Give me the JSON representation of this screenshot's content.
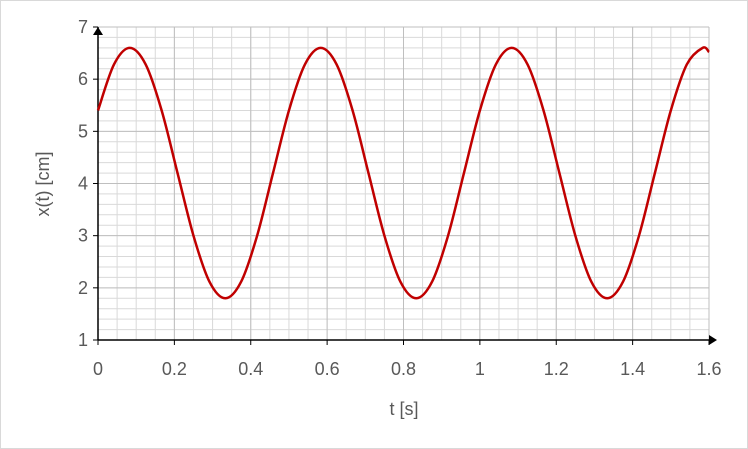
{
  "chart_data": {
    "type": "line",
    "title": "",
    "xlabel": "t [s]",
    "ylabel": "x(t) [cm]",
    "xlim": [
      0,
      1.6
    ],
    "ylim": [
      1,
      7
    ],
    "x_ticks": [
      0,
      0.2,
      0.4,
      0.6,
      0.8,
      1,
      1.2,
      1.4,
      1.6
    ],
    "y_ticks": [
      1,
      2,
      3,
      4,
      5,
      6,
      7
    ],
    "x_tick_labels": [
      "0",
      "0.2",
      "0.4",
      "0.6",
      "0.8",
      "1",
      "1.2",
      "1.4",
      "1.6"
    ],
    "y_tick_labels": [
      "1",
      "2",
      "3",
      "4",
      "5",
      "6",
      "7"
    ],
    "grid": true,
    "minor_grid_x_step": 0.05,
    "minor_grid_y_step": 0.2,
    "series": [
      {
        "color": "#c00000",
        "x": [
          0,
          0.0417,
          0.0833,
          0.125,
          0.1667,
          0.2083,
          0.25,
          0.2917,
          0.3333,
          0.375,
          0.4167,
          0.4583,
          0.5,
          0.5417,
          0.5833,
          0.625,
          0.6667,
          0.7083,
          0.75,
          0.7917,
          0.8333,
          0.875,
          0.9167,
          0.9583,
          1.0,
          1.0417,
          1.0833,
          1.125,
          1.1667,
          1.2083,
          1.25,
          1.2917,
          1.3333,
          1.375,
          1.4167,
          1.4583,
          1.5,
          1.5417,
          1.5833,
          1.6
        ],
        "y": [
          5.4,
          6.28,
          6.6,
          6.28,
          5.4,
          4.2,
          3.0,
          2.12,
          1.8,
          2.12,
          3.0,
          4.2,
          5.4,
          6.28,
          6.6,
          6.28,
          5.4,
          4.2,
          3.0,
          2.12,
          1.8,
          2.12,
          3.0,
          4.2,
          5.4,
          6.28,
          6.6,
          6.28,
          5.4,
          4.2,
          3.0,
          2.12,
          1.8,
          2.12,
          3.0,
          4.2,
          5.4,
          6.28,
          6.6,
          6.52
        ]
      }
    ]
  }
}
